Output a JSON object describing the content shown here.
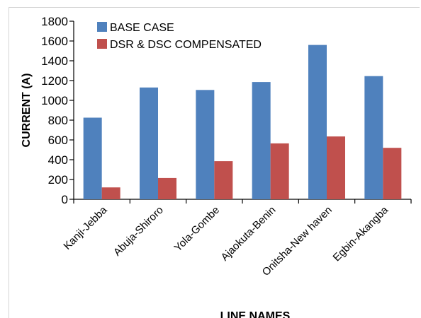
{
  "chart_data": {
    "type": "bar",
    "categories": [
      "Kanji-Jebba",
      "Abuja-Shiroro",
      "Yola-Gombe",
      "Ajaokuta-Benin",
      "Onitsha-New haven",
      "Egbin-Akangba"
    ],
    "series": [
      {
        "name": "BASE CASE",
        "values": [
          825,
          1130,
          1105,
          1185,
          1560,
          1245
        ],
        "color": "#4f81bd"
      },
      {
        "name": "DSR & DSC COMPENSATED",
        "values": [
          120,
          215,
          385,
          565,
          635,
          520
        ],
        "color": "#c0504d"
      }
    ],
    "ylabel": "CURRENT (A)",
    "xlabel": "LINE NAMES",
    "ylim": [
      0,
      1800
    ],
    "yticks": [
      0,
      200,
      400,
      600,
      800,
      1000,
      1200,
      1400,
      1600,
      1800
    ],
    "legend": "top-left",
    "grid": false
  }
}
